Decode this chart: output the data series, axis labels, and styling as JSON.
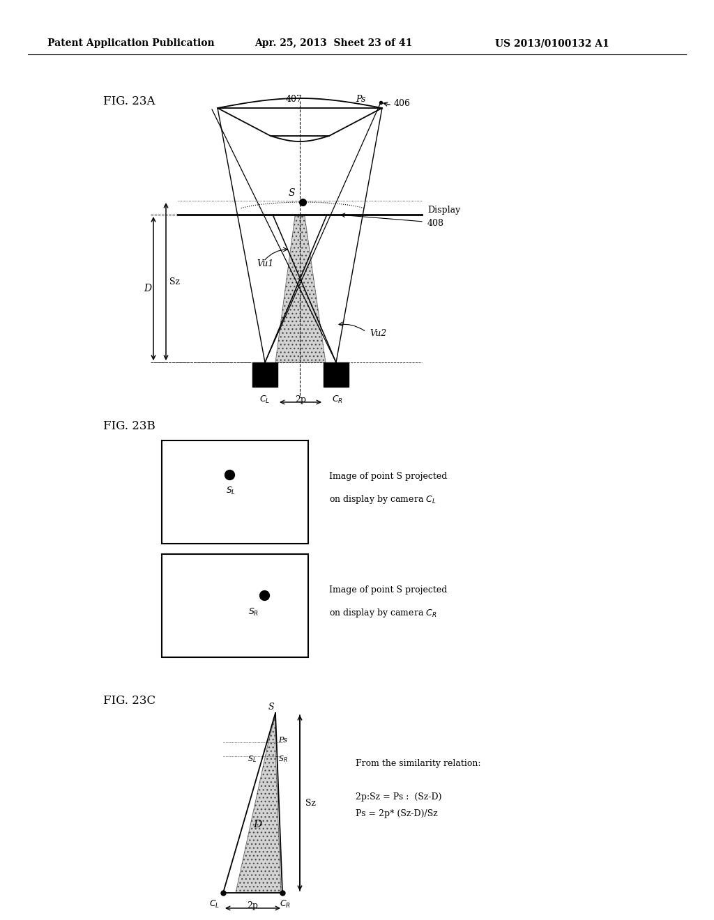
{
  "header_left": "Patent Application Publication",
  "header_mid": "Apr. 25, 2013  Sheet 23 of 41",
  "header_right": "US 2013/0100132 A1",
  "fig23a_label": "FIG. 23A",
  "fig23b_label": "FIG. 23B",
  "fig23c_label": "FIG. 23C",
  "bg_color": "#ffffff"
}
